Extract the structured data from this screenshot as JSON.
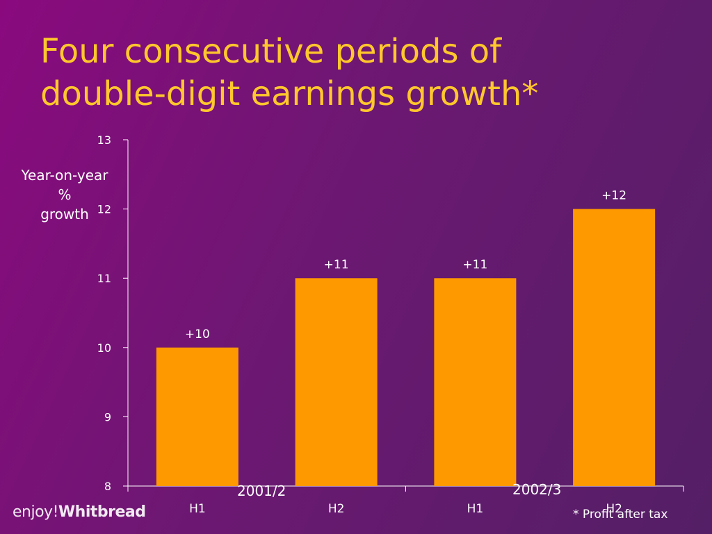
{
  "title_line1": "Four consecutive periods of",
  "title_line2": "double-digit earnings growth*",
  "ylabel_lines": [
    "Year-on-year",
    "%",
    "growth"
  ],
  "footnote": "* Profit after tax",
  "logo": {
    "prefix": "enjoy!",
    "brand": "Whitbread"
  },
  "colors": {
    "bar": "#ff9900",
    "title": "#ffc72c",
    "text": "#ffffff",
    "axis": "#ffffff"
  },
  "chart_data": {
    "type": "bar",
    "categories": [
      "H1",
      "H2",
      "H1",
      "H2"
    ],
    "groups": [
      "2001/2",
      "2002/3"
    ],
    "values": [
      10,
      11,
      11,
      12
    ],
    "data_labels": [
      "+10",
      "+11",
      "+11",
      "+12"
    ],
    "yticks": [
      8,
      9,
      10,
      11,
      12,
      13
    ],
    "ylim": [
      8,
      13
    ],
    "ylabel": "Year-on-year % growth",
    "title": "Four consecutive periods of double-digit earnings growth*",
    "grid": false,
    "legend": "none"
  }
}
